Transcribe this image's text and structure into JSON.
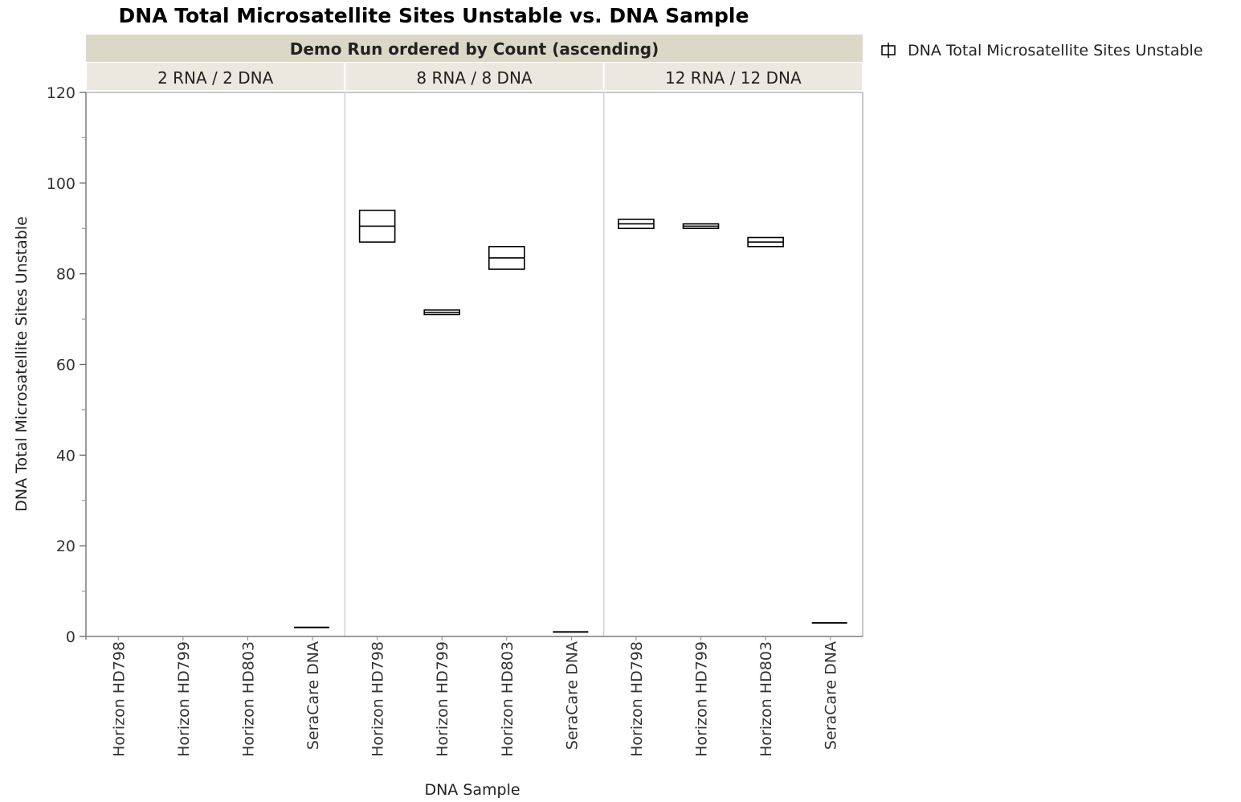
{
  "chart_data": {
    "type": "box",
    "title": "DNA Total Microsatellite Sites Unstable vs. DNA Sample",
    "group_header": "Demo Run ordered by Count (ascending)",
    "xlabel": "DNA Sample",
    "ylabel": "DNA Total Microsatellite Sites Unstable",
    "ylim": [
      0,
      120
    ],
    "yticks": [
      0,
      20,
      40,
      60,
      80,
      100,
      120
    ],
    "legend": {
      "label": "DNA Total Microsatellite Sites Unstable",
      "position": "top-right"
    },
    "panels": [
      {
        "label": "2 RNA / 2 DNA",
        "categories": [
          "Horizon HD798",
          "Horizon HD799",
          "Horizon HD803",
          "SeraCare DNA"
        ],
        "boxes": [
          null,
          null,
          null,
          {
            "q1": 2,
            "median": 2,
            "q3": 2
          }
        ]
      },
      {
        "label": "8 RNA / 8 DNA",
        "categories": [
          "Horizon HD798",
          "Horizon HD799",
          "Horizon HD803",
          "SeraCare DNA"
        ],
        "boxes": [
          {
            "q1": 87,
            "median": 90.5,
            "q3": 94
          },
          {
            "q1": 71,
            "median": 71.5,
            "q3": 72
          },
          {
            "q1": 81,
            "median": 83.5,
            "q3": 86
          },
          {
            "q1": 1,
            "median": 1,
            "q3": 1
          }
        ]
      },
      {
        "label": "12 RNA / 12 DNA",
        "categories": [
          "Horizon HD798",
          "Horizon HD799",
          "Horizon HD803",
          "SeraCare DNA"
        ],
        "boxes": [
          {
            "q1": 90,
            "median": 91,
            "q3": 92
          },
          {
            "q1": 90,
            "median": 90.5,
            "q3": 91
          },
          {
            "q1": 86,
            "median": 87,
            "q3": 88
          },
          {
            "q1": 3,
            "median": 3,
            "q3": 3
          }
        ]
      }
    ]
  }
}
